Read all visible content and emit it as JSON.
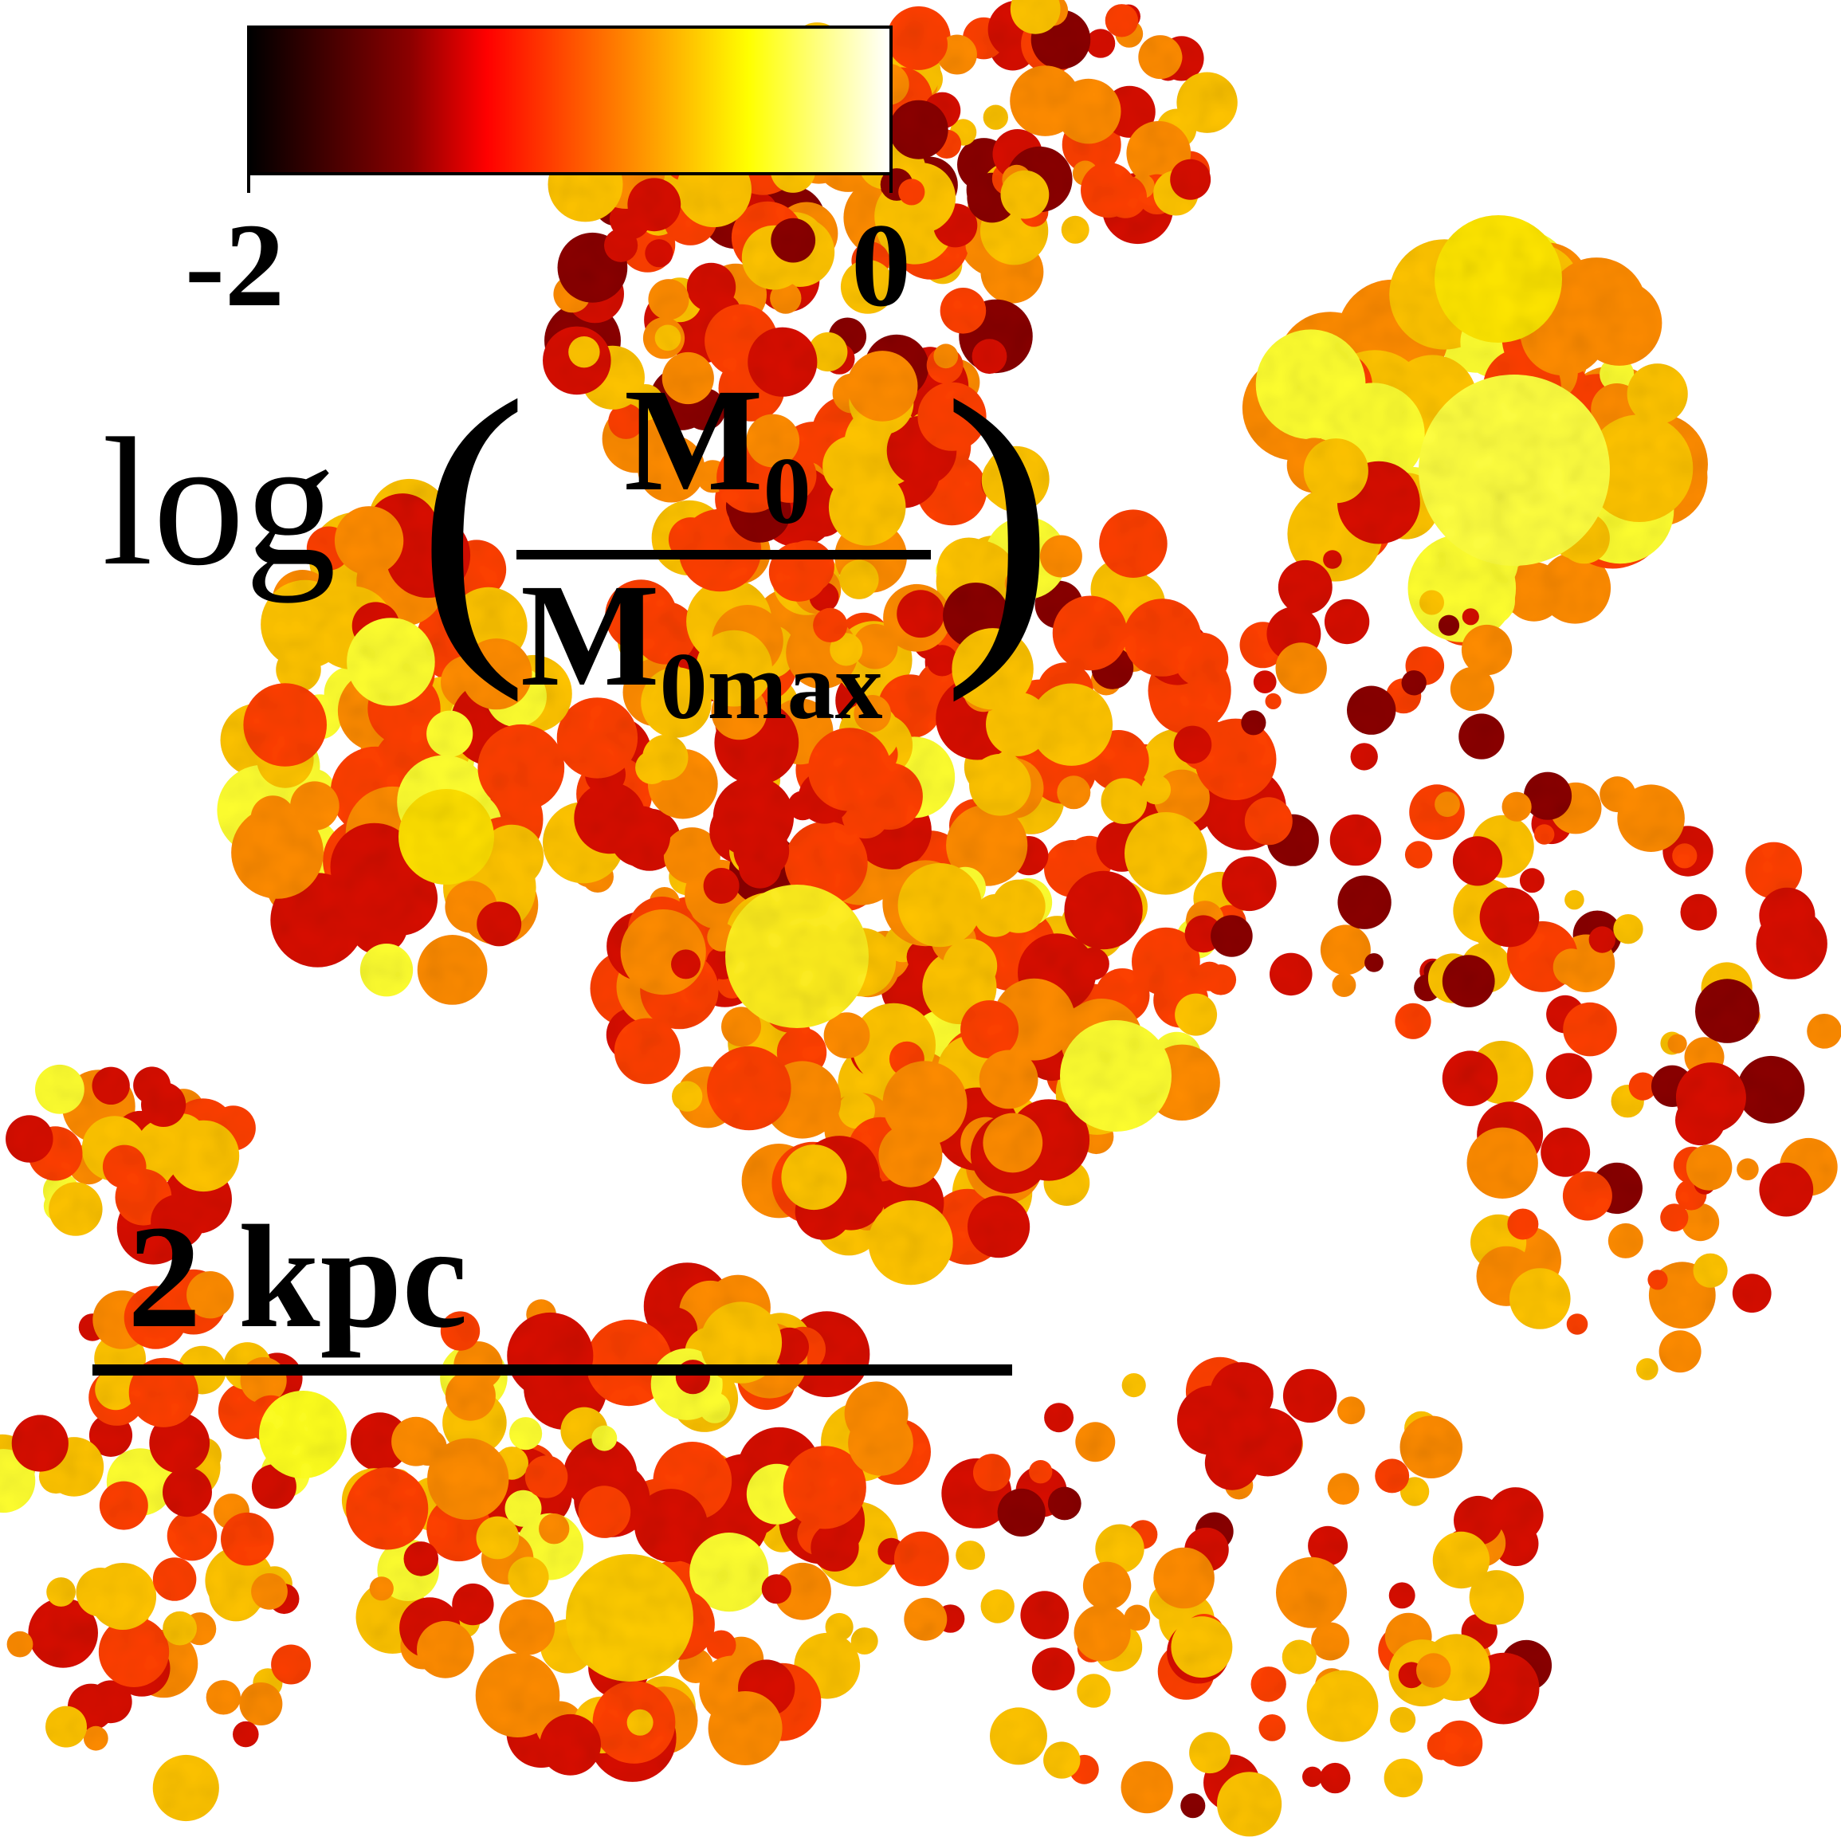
{
  "colorbar": {
    "min_label": "-2",
    "max_label": "0",
    "colors": [
      "#000000",
      "#8b0000",
      "#ff0000",
      "#ff8c00",
      "#ffff00",
      "#ffffff"
    ]
  },
  "colorbar_label": {
    "log": "log",
    "numerator_base": "M",
    "numerator_sub": "0",
    "denominator_base": "M",
    "denominator_sub": "0max"
  },
  "scale": {
    "label": "2 kpc"
  },
  "map": {
    "description_colors": [
      "#3a0000",
      "#8b0000",
      "#d81000",
      "#ff4000",
      "#ff8c00",
      "#ffc400",
      "#ffff30",
      "#fffff0"
    ]
  }
}
